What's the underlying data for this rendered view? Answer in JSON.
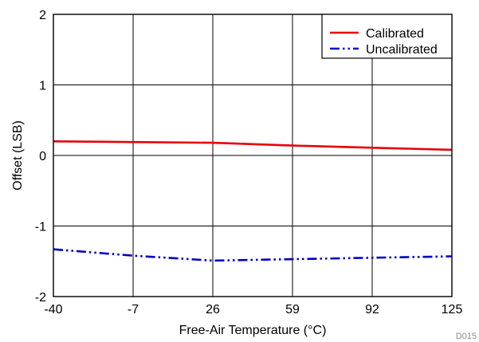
{
  "chart_data": {
    "type": "line",
    "xlabel": "Free-Air Temperature (°C)",
    "ylabel": "Offset (LSB)",
    "xlim": [
      -40,
      125
    ],
    "ylim": [
      -2,
      2
    ],
    "xticks": [
      -40,
      -7,
      26,
      59,
      92,
      125
    ],
    "yticks": [
      -2,
      -1,
      0,
      1,
      2
    ],
    "grid": true,
    "legend_position": "top-right",
    "watermark": "D015",
    "series": [
      {
        "name": "Calibrated",
        "color": "#e8000b",
        "dash": "solid",
        "x": [
          -40,
          -7,
          26,
          59,
          92,
          125
        ],
        "y": [
          0.2,
          0.19,
          0.18,
          0.14,
          0.11,
          0.08
        ]
      },
      {
        "name": "Uncalibrated",
        "color": "#0000cc",
        "dash": "dash-dot-dot",
        "x": [
          -40,
          -7,
          26,
          59,
          92,
          125
        ],
        "y": [
          -1.33,
          -1.42,
          -1.49,
          -1.47,
          -1.45,
          -1.43
        ]
      }
    ]
  }
}
